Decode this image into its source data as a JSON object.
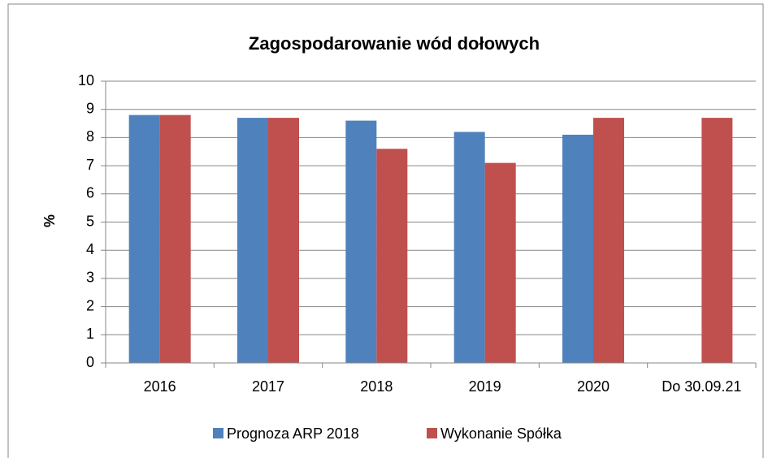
{
  "chart_data": {
    "type": "bar",
    "title": "Zagospodarowanie wód dołowych",
    "y_label": "%",
    "categories": [
      "2016",
      "2017",
      "2018",
      "2019",
      "2020",
      "Do 30.09.21"
    ],
    "series": [
      {
        "name": "Prognoza ARP 2018",
        "color": "#4f81bd",
        "values": [
          8.8,
          8.7,
          8.6,
          8.2,
          8.1,
          null
        ]
      },
      {
        "name": "Wykonanie Spółka",
        "color": "#c0504d",
        "values": [
          8.8,
          8.7,
          7.6,
          7.1,
          8.7,
          8.7
        ]
      }
    ],
    "ylim": [
      0,
      10
    ],
    "yticks": [
      0,
      1,
      2,
      3,
      4,
      5,
      6,
      7,
      8,
      9,
      10
    ],
    "grid": true,
    "legend": "bottom"
  }
}
